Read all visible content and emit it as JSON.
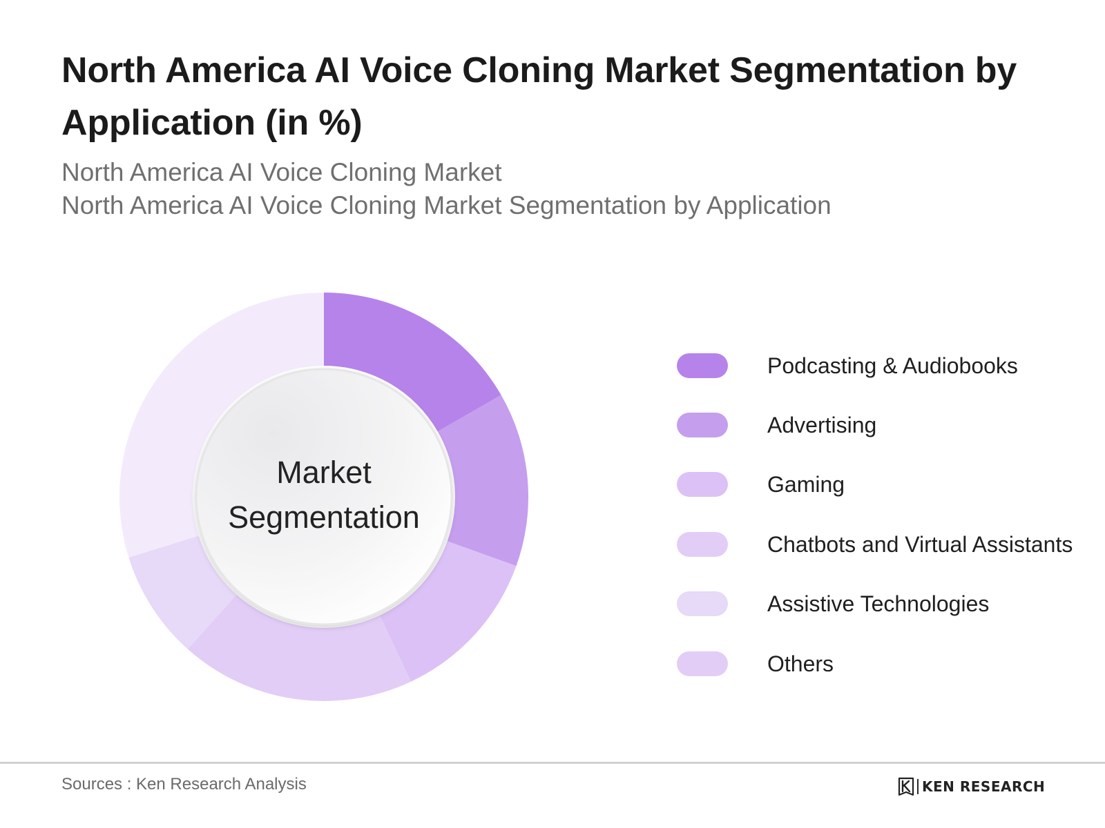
{
  "header": {
    "title": "North America AI Voice Cloning Market Segmentation by Application (in %)",
    "subtitle_1": "North America AI Voice Cloning Market",
    "subtitle_2": "North America AI Voice Cloning Market Segmentation by Application"
  },
  "chart_data": {
    "type": "pie",
    "variant": "donut",
    "center_label_lines": [
      "Market",
      "Segmentation"
    ],
    "categories": [
      "Podcasting & Audiobooks",
      "Advertising",
      "Gaming",
      "Chatbots and Virtual Assistants",
      "Assistive Technologies",
      "Others"
    ],
    "values": [
      16.7,
      13.8,
      12.5,
      18.6,
      8.6,
      29.8
    ],
    "unit": "%",
    "colors": [
      "#b683ea",
      "#c59eee",
      "#dcc1f6",
      "#e2cdf7",
      "#e7d9f8",
      "#f3ebfb"
    ],
    "legend_colors": [
      "#b683ea",
      "#c59eee",
      "#dcc1f6",
      "#e2cdf7",
      "#e7d9f8",
      "#e2cdf7"
    ],
    "legend_position": "right",
    "start_angle": "12 o'clock",
    "direction": "clockwise"
  },
  "footer": {
    "source": "Sources : Ken Research Analysis",
    "logo_text": "KEN RESEARCH"
  }
}
